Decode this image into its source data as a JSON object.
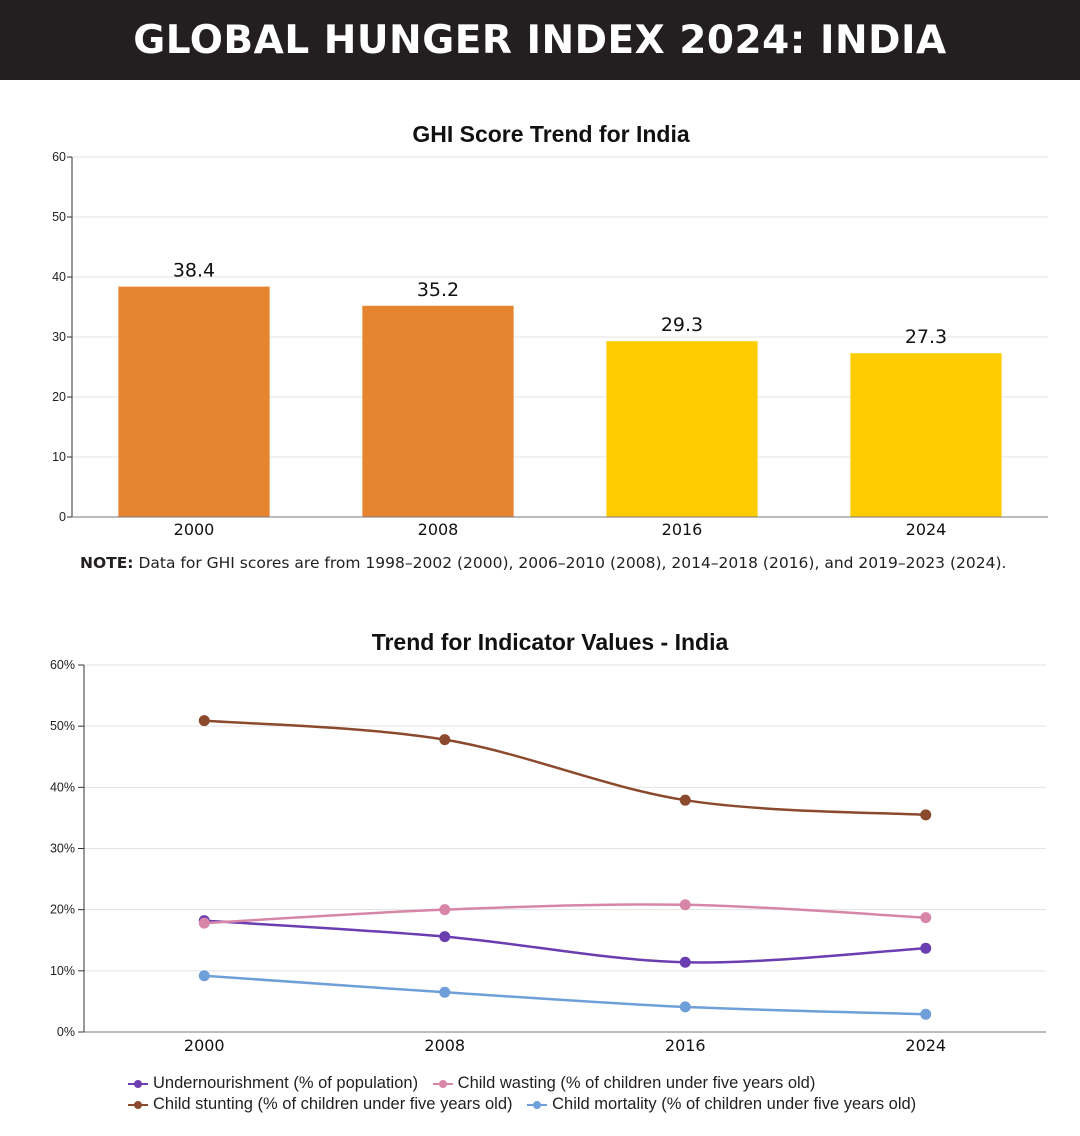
{
  "header": {
    "title": "GLOBAL HUNGER INDEX 2024: INDIA"
  },
  "colors": {
    "banner": "#231f20",
    "orange": "#e68430",
    "yellow": "#ffcc00",
    "undernourishment": "#6a3db0",
    "child_wasting": "#d886a8",
    "child_stunting": "#8b4a2e",
    "child_mortality": "#6f9fd8"
  },
  "note": {
    "label": "NOTE:",
    "text": " Data for GHI scores are from 1998–2002 (2000), 2006–2010 (2008), 2014–2018 (2016), and 2019–2023 (2024)."
  },
  "chart_data": [
    {
      "type": "bar",
      "title": "GHI Score Trend for India",
      "categories": [
        "2000",
        "2008",
        "2016",
        "2024"
      ],
      "values": [
        38.4,
        35.2,
        29.3,
        27.3
      ],
      "value_labels": [
        "38.4",
        "35.2",
        "29.3",
        "27.3"
      ],
      "bar_colors": [
        "orange",
        "orange",
        "yellow",
        "yellow"
      ],
      "ylim": [
        0,
        60
      ],
      "yticks": [
        "0",
        "10",
        "20",
        "30",
        "40",
        "50",
        "60"
      ],
      "grid": true
    },
    {
      "type": "line",
      "title": "Trend for Indicator Values - India",
      "x": [
        "2000",
        "2008",
        "2016",
        "2024"
      ],
      "ylim": [
        0,
        60
      ],
      "yticks": [
        "0%",
        "10%",
        "20%",
        "30%",
        "40%",
        "50%",
        "60%"
      ],
      "grid": true,
      "legend_position": "bottom",
      "series": [
        {
          "name": "Undernourishment (% of population)",
          "color_key": "undernourishment",
          "values": [
            18.2,
            15.6,
            11.4,
            13.7
          ]
        },
        {
          "name": "Child wasting (% of children under five years old)",
          "color_key": "child_wasting",
          "values": [
            17.8,
            20.0,
            20.8,
            18.7
          ]
        },
        {
          "name": "Child stunting (% of children under five years old)",
          "color_key": "child_stunting",
          "values": [
            50.9,
            47.8,
            37.9,
            35.5
          ]
        },
        {
          "name": "Child mortality (% of children under five years old)",
          "color_key": "child_mortality",
          "values": [
            9.2,
            6.5,
            4.1,
            2.9
          ]
        }
      ]
    }
  ]
}
